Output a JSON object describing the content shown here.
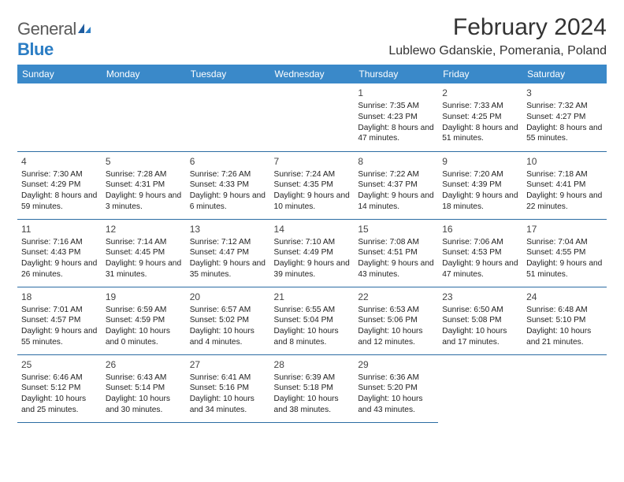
{
  "logo": {
    "text1": "General",
    "text2": "Blue"
  },
  "title": "February 2024",
  "location": "Lublewo Gdanskie, Pomerania, Poland",
  "header_bg": "#3a89c9",
  "border_color": "#2b6ca3",
  "day_headers": [
    "Sunday",
    "Monday",
    "Tuesday",
    "Wednesday",
    "Thursday",
    "Friday",
    "Saturday"
  ],
  "weeks": [
    [
      null,
      null,
      null,
      null,
      {
        "n": "1",
        "sr": "Sunrise: 7:35 AM",
        "ss": "Sunset: 4:23 PM",
        "dl": "Daylight: 8 hours and 47 minutes."
      },
      {
        "n": "2",
        "sr": "Sunrise: 7:33 AM",
        "ss": "Sunset: 4:25 PM",
        "dl": "Daylight: 8 hours and 51 minutes."
      },
      {
        "n": "3",
        "sr": "Sunrise: 7:32 AM",
        "ss": "Sunset: 4:27 PM",
        "dl": "Daylight: 8 hours and 55 minutes."
      }
    ],
    [
      {
        "n": "4",
        "sr": "Sunrise: 7:30 AM",
        "ss": "Sunset: 4:29 PM",
        "dl": "Daylight: 8 hours and 59 minutes."
      },
      {
        "n": "5",
        "sr": "Sunrise: 7:28 AM",
        "ss": "Sunset: 4:31 PM",
        "dl": "Daylight: 9 hours and 3 minutes."
      },
      {
        "n": "6",
        "sr": "Sunrise: 7:26 AM",
        "ss": "Sunset: 4:33 PM",
        "dl": "Daylight: 9 hours and 6 minutes."
      },
      {
        "n": "7",
        "sr": "Sunrise: 7:24 AM",
        "ss": "Sunset: 4:35 PM",
        "dl": "Daylight: 9 hours and 10 minutes."
      },
      {
        "n": "8",
        "sr": "Sunrise: 7:22 AM",
        "ss": "Sunset: 4:37 PM",
        "dl": "Daylight: 9 hours and 14 minutes."
      },
      {
        "n": "9",
        "sr": "Sunrise: 7:20 AM",
        "ss": "Sunset: 4:39 PM",
        "dl": "Daylight: 9 hours and 18 minutes."
      },
      {
        "n": "10",
        "sr": "Sunrise: 7:18 AM",
        "ss": "Sunset: 4:41 PM",
        "dl": "Daylight: 9 hours and 22 minutes."
      }
    ],
    [
      {
        "n": "11",
        "sr": "Sunrise: 7:16 AM",
        "ss": "Sunset: 4:43 PM",
        "dl": "Daylight: 9 hours and 26 minutes."
      },
      {
        "n": "12",
        "sr": "Sunrise: 7:14 AM",
        "ss": "Sunset: 4:45 PM",
        "dl": "Daylight: 9 hours and 31 minutes."
      },
      {
        "n": "13",
        "sr": "Sunrise: 7:12 AM",
        "ss": "Sunset: 4:47 PM",
        "dl": "Daylight: 9 hours and 35 minutes."
      },
      {
        "n": "14",
        "sr": "Sunrise: 7:10 AM",
        "ss": "Sunset: 4:49 PM",
        "dl": "Daylight: 9 hours and 39 minutes."
      },
      {
        "n": "15",
        "sr": "Sunrise: 7:08 AM",
        "ss": "Sunset: 4:51 PM",
        "dl": "Daylight: 9 hours and 43 minutes."
      },
      {
        "n": "16",
        "sr": "Sunrise: 7:06 AM",
        "ss": "Sunset: 4:53 PM",
        "dl": "Daylight: 9 hours and 47 minutes."
      },
      {
        "n": "17",
        "sr": "Sunrise: 7:04 AM",
        "ss": "Sunset: 4:55 PM",
        "dl": "Daylight: 9 hours and 51 minutes."
      }
    ],
    [
      {
        "n": "18",
        "sr": "Sunrise: 7:01 AM",
        "ss": "Sunset: 4:57 PM",
        "dl": "Daylight: 9 hours and 55 minutes."
      },
      {
        "n": "19",
        "sr": "Sunrise: 6:59 AM",
        "ss": "Sunset: 4:59 PM",
        "dl": "Daylight: 10 hours and 0 minutes."
      },
      {
        "n": "20",
        "sr": "Sunrise: 6:57 AM",
        "ss": "Sunset: 5:02 PM",
        "dl": "Daylight: 10 hours and 4 minutes."
      },
      {
        "n": "21",
        "sr": "Sunrise: 6:55 AM",
        "ss": "Sunset: 5:04 PM",
        "dl": "Daylight: 10 hours and 8 minutes."
      },
      {
        "n": "22",
        "sr": "Sunrise: 6:53 AM",
        "ss": "Sunset: 5:06 PM",
        "dl": "Daylight: 10 hours and 12 minutes."
      },
      {
        "n": "23",
        "sr": "Sunrise: 6:50 AM",
        "ss": "Sunset: 5:08 PM",
        "dl": "Daylight: 10 hours and 17 minutes."
      },
      {
        "n": "24",
        "sr": "Sunrise: 6:48 AM",
        "ss": "Sunset: 5:10 PM",
        "dl": "Daylight: 10 hours and 21 minutes."
      }
    ],
    [
      {
        "n": "25",
        "sr": "Sunrise: 6:46 AM",
        "ss": "Sunset: 5:12 PM",
        "dl": "Daylight: 10 hours and 25 minutes."
      },
      {
        "n": "26",
        "sr": "Sunrise: 6:43 AM",
        "ss": "Sunset: 5:14 PM",
        "dl": "Daylight: 10 hours and 30 minutes."
      },
      {
        "n": "27",
        "sr": "Sunrise: 6:41 AM",
        "ss": "Sunset: 5:16 PM",
        "dl": "Daylight: 10 hours and 34 minutes."
      },
      {
        "n": "28",
        "sr": "Sunrise: 6:39 AM",
        "ss": "Sunset: 5:18 PM",
        "dl": "Daylight: 10 hours and 38 minutes."
      },
      {
        "n": "29",
        "sr": "Sunrise: 6:36 AM",
        "ss": "Sunset: 5:20 PM",
        "dl": "Daylight: 10 hours and 43 minutes."
      },
      null,
      null
    ]
  ]
}
